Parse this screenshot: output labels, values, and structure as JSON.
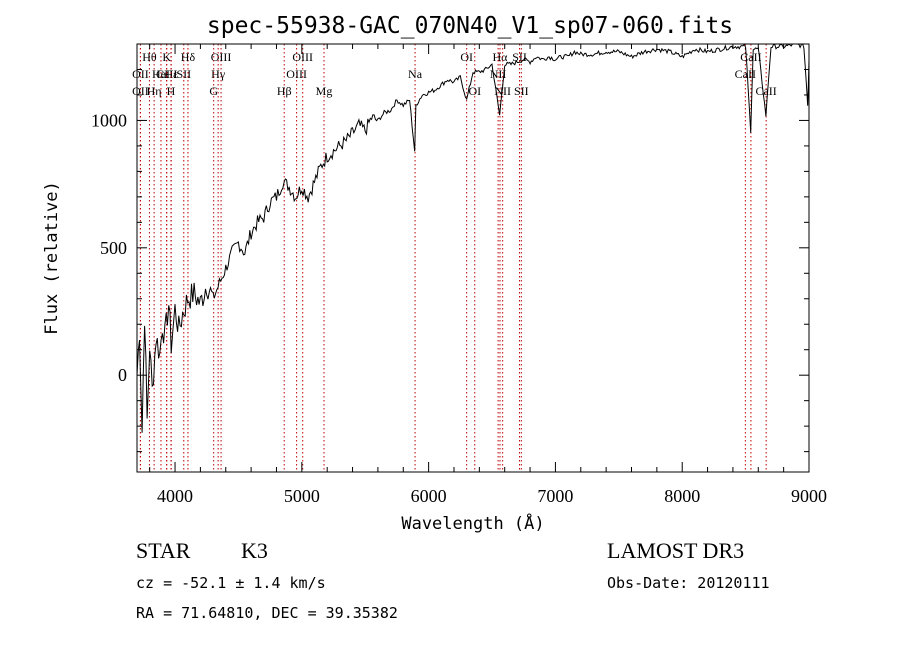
{
  "chart_data": {
    "type": "line",
    "title": "spec-55938-GAC_070N40_V1_sp07-060.fits",
    "xlabel": "Wavelength (Å)",
    "ylabel": "Flux (relative)",
    "xlim": [
      3700,
      9000
    ],
    "ylim": [
      -380,
      1300
    ],
    "x_ticks": [
      4000,
      5000,
      6000,
      7000,
      8000,
      9000
    ],
    "y_ticks": [
      0,
      500,
      1000
    ],
    "series": [
      {
        "name": "spectrum",
        "x": [
          3700,
          3720,
          3740,
          3760,
          3780,
          3800,
          3820,
          3850,
          3880,
          3900,
          3920,
          3950,
          3970,
          4000,
          4030,
          4060,
          4100,
          4150,
          4200,
          4250,
          4300,
          4350,
          4400,
          4450,
          4500,
          4550,
          4600,
          4650,
          4700,
          4750,
          4800,
          4850,
          4900,
          4950,
          5000,
          5050,
          5100,
          5150,
          5200,
          5250,
          5300,
          5350,
          5400,
          5450,
          5500,
          5550,
          5600,
          5650,
          5700,
          5750,
          5800,
          5850,
          5890,
          5900,
          5950,
          6000,
          6050,
          6100,
          6150,
          6200,
          6250,
          6300,
          6350,
          6400,
          6450,
          6500,
          6560,
          6600,
          6650,
          6700,
          6750,
          6800,
          6850,
          6900,
          6950,
          7000,
          7050,
          7100,
          7150,
          7200,
          7300,
          7400,
          7500,
          7600,
          7700,
          7800,
          7900,
          8000,
          8100,
          8200,
          8300,
          8400,
          8500,
          8540,
          8560,
          8600,
          8660,
          8700,
          8800,
          8900,
          8960,
          8990,
          9000
        ],
        "y": [
          0,
          180,
          -220,
          240,
          -180,
          120,
          -60,
          150,
          80,
          200,
          150,
          280,
          120,
          260,
          180,
          240,
          300,
          320,
          280,
          360,
          300,
          360,
          420,
          480,
          520,
          480,
          560,
          600,
          620,
          680,
          700,
          760,
          740,
          700,
          740,
          700,
          760,
          820,
          860,
          880,
          900,
          920,
          950,
          980,
          960,
          1010,
          1000,
          1030,
          1040,
          1080,
          1060,
          1080,
          880,
          1060,
          1100,
          1110,
          1120,
          1140,
          1160,
          1150,
          1170,
          1080,
          1190,
          1190,
          1200,
          1220,
          1020,
          1220,
          1220,
          1230,
          1240,
          1230,
          1250,
          1240,
          1250,
          1240,
          1250,
          1250,
          1270,
          1260,
          1260,
          1270,
          1270,
          1250,
          1270,
          1280,
          1270,
          1250,
          1280,
          1270,
          1280,
          1290,
          1290,
          960,
          1280,
          1280,
          1020,
          1290,
          1290,
          1300,
          1290,
          1060,
          1240
        ]
      }
    ],
    "lines": [
      {
        "name": "CaII",
        "x": 3934,
        "row": 2
      },
      {
        "name": "Hε",
        "x": 3970,
        "row": 2
      },
      {
        "name": "H",
        "x": 3968,
        "row": 3
      },
      {
        "name": "Hθ",
        "x": 3798,
        "row": 1
      },
      {
        "name": "OII",
        "x": 3727,
        "row": 2
      },
      {
        "name": "OII",
        "x": 3727,
        "row": 3
      },
      {
        "name": "Hη",
        "x": 3835,
        "row": 3
      },
      {
        "name": "HeI",
        "x": 3889,
        "row": 2
      },
      {
        "name": "K",
        "x": 3934,
        "row": 1
      },
      {
        "name": "SII",
        "x": 4069,
        "row": 2
      },
      {
        "name": "Hδ",
        "x": 4102,
        "row": 1
      },
      {
        "name": "OIII",
        "x": 4363,
        "row": 1
      },
      {
        "name": "Hγ",
        "x": 4340,
        "row": 2
      },
      {
        "name": "G",
        "x": 4305,
        "row": 3
      },
      {
        "name": "Hβ",
        "x": 4861,
        "row": 3
      },
      {
        "name": "OIII",
        "x": 4959,
        "row": 2
      },
      {
        "name": "OIII",
        "x": 5007,
        "row": 1
      },
      {
        "name": "Mg",
        "x": 5175,
        "row": 3
      },
      {
        "name": "Na",
        "x": 5893,
        "row": 2
      },
      {
        "name": "OI",
        "x": 6300,
        "row": 1
      },
      {
        "name": "OI",
        "x": 6364,
        "row": 3
      },
      {
        "name": "Hα",
        "x": 6563,
        "row": 1
      },
      {
        "name": "NII",
        "x": 6548,
        "row": 2
      },
      {
        "name": "NII",
        "x": 6584,
        "row": 3
      },
      {
        "name": "SII",
        "x": 6717,
        "row": 1
      },
      {
        "name": "SII",
        "x": 6731,
        "row": 3
      },
      {
        "name": "CaII",
        "x": 8498,
        "row": 2
      },
      {
        "name": "CaII",
        "x": 8542,
        "row": 1
      },
      {
        "name": "CaII",
        "x": 8662,
        "row": 3
      }
    ]
  },
  "footer": {
    "class": "STAR",
    "subclass": "K3",
    "survey": "LAMOST DR3",
    "cz": "cz = -52.1 ± 1.4 km/s",
    "obs_date": "Obs-Date: 20120111",
    "radec": "RA =  71.64810, DEC =  39.35382"
  },
  "colors": {
    "line_marker": "#c00000",
    "spectrum": "#000000"
  }
}
